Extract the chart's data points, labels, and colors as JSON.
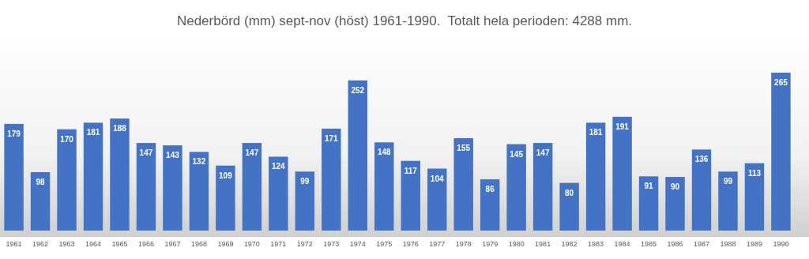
{
  "chart_data": {
    "type": "bar",
    "title": "Nederbörd (mm) sept-nov (höst) 1961-1990.  Totalt hela perioden: 4288 mm.",
    "categories": [
      "1961",
      "1962",
      "1963",
      "1964",
      "1965",
      "1966",
      "1967",
      "1968",
      "1969",
      "1970",
      "1971",
      "1972",
      "1973",
      "1974",
      "1975",
      "1976",
      "1977",
      "1978",
      "1979",
      "1980",
      "1981",
      "1982",
      "1983",
      "1984",
      "1985",
      "1986",
      "1987",
      "1988",
      "1989",
      "1990"
    ],
    "values": [
      179,
      98,
      170,
      181,
      188,
      147,
      143,
      132,
      109,
      147,
      124,
      99,
      171,
      252,
      148,
      117,
      104,
      155,
      86,
      145,
      147,
      80,
      181,
      191,
      91,
      90,
      136,
      99,
      113,
      265
    ],
    "color": "#4472c4",
    "data_labels": true
  }
}
